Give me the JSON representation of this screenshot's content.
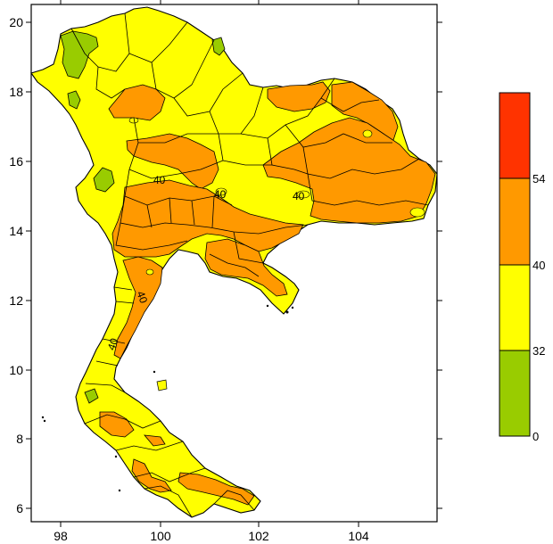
{
  "map": {
    "x_ticks": [
      "98",
      "100",
      "102",
      "104"
    ],
    "y_ticks": [
      "20",
      "18",
      "16",
      "14",
      "12",
      "10",
      "8",
      "6"
    ],
    "contour_labels": [
      "40",
      "40",
      "40",
      "40",
      "40"
    ]
  },
  "legend": {
    "bins": [
      {
        "from": 0,
        "to": 32,
        "color": "#99cc00"
      },
      {
        "from": 32,
        "to": 40,
        "color": "#ffff00"
      },
      {
        "from": 40,
        "to": 54,
        "color": "#ff9900"
      },
      {
        "from": 54,
        "to": null,
        "color": "#ff3300"
      }
    ],
    "labels": [
      "54",
      "40",
      "32",
      "0"
    ]
  },
  "colors": {
    "green": "#99cc00",
    "yellow": "#ffff00",
    "orange": "#ff9900",
    "red": "#ff3300"
  }
}
